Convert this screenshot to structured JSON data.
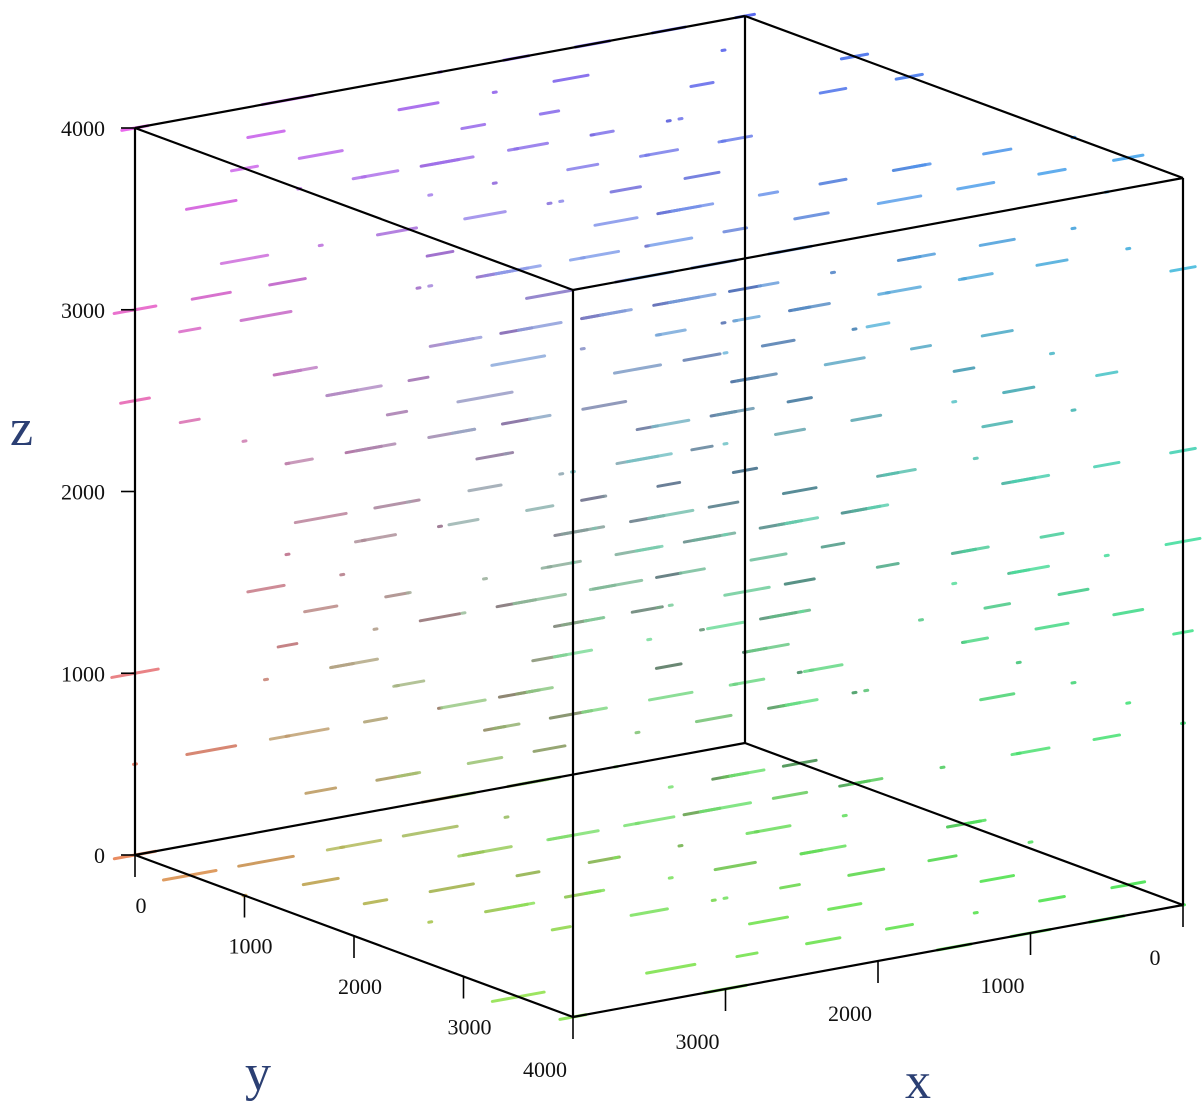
{
  "chart_data": {
    "type": "vectorfield3d",
    "xlabel": "x",
    "ylabel": "y",
    "zlabel": "z",
    "xlim": [
      0,
      4000
    ],
    "ylim": [
      0,
      4000
    ],
    "zlim": [
      0,
      4000
    ],
    "xticks": [
      0,
      1000,
      2000,
      3000,
      4000
    ],
    "yticks": [
      0,
      1000,
      2000,
      3000
    ],
    "zticks": [
      0,
      1000,
      2000,
      3000,
      4000
    ]
  }
}
